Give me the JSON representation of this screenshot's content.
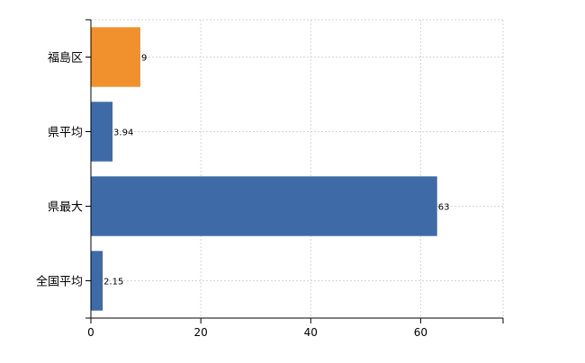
{
  "chart_data": {
    "type": "bar",
    "orientation": "horizontal",
    "categories": [
      "福島区",
      "県平均",
      "県最大",
      "全国平均"
    ],
    "values": [
      9,
      3.94,
      63,
      2.15
    ],
    "value_labels": [
      "9",
      "3.94",
      "63",
      "2.15"
    ],
    "bar_colors": [
      "#f0912e",
      "#3e6ba8",
      "#3e6ba8",
      "#3e6ba8"
    ],
    "highlight_color": "#f0912e",
    "base_color": "#3e6ba8",
    "xlim": [
      0,
      75
    ],
    "xticks": [
      0,
      20,
      40,
      60
    ],
    "grid": true,
    "title": "",
    "xlabel": "",
    "ylabel": ""
  }
}
